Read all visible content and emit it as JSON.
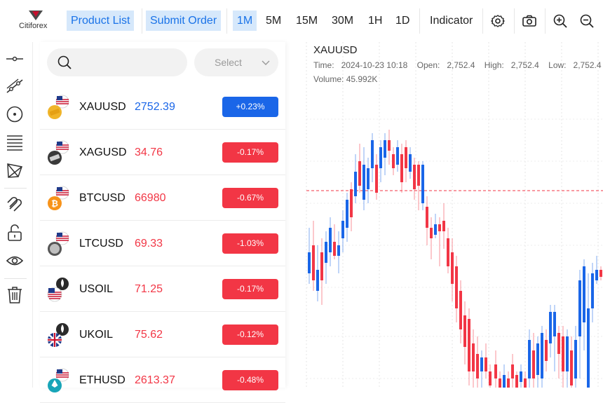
{
  "brand": {
    "name": "Citiforex"
  },
  "toolbar": {
    "product_list": "Product List",
    "submit_order": "Submit Order",
    "timeframes": [
      "1M",
      "5M",
      "15M",
      "30M",
      "1H",
      "1D"
    ],
    "active_timeframe": "1M",
    "indicator": "Indicator",
    "icons": [
      "gear-icon",
      "camera-icon",
      "zoom-in-icon",
      "zoom-out-icon"
    ]
  },
  "left_tools": [
    "horizontal-line-icon",
    "trend-line-icon",
    "circle-dot-icon",
    "fibonacci-icon",
    "pattern-icon",
    "magnet-icon",
    "lock-icon",
    "eye-icon",
    "trash-icon"
  ],
  "search": {
    "placeholder": ""
  },
  "select": {
    "label": "Select"
  },
  "products": [
    {
      "symbol": "XAUUSD",
      "price": "2752.39",
      "change": "+0.23%",
      "direction": "up"
    },
    {
      "symbol": "XAGUSD",
      "price": "34.76",
      "change": "-0.17%",
      "direction": "down"
    },
    {
      "symbol": "BTCUSD",
      "price": "66980",
      "change": "-0.67%",
      "direction": "down"
    },
    {
      "symbol": "LTCUSD",
      "price": "69.33",
      "change": "-1.03%",
      "direction": "down"
    },
    {
      "symbol": "USOIL",
      "price": "71.25",
      "change": "-0.17%",
      "direction": "down"
    },
    {
      "symbol": "UKOIL",
      "price": "75.62",
      "change": "-0.12%",
      "direction": "down"
    },
    {
      "symbol": "ETHUSD",
      "price": "2613.37",
      "change": "-0.48%",
      "direction": "down"
    }
  ],
  "colors": {
    "up": "#1a66e8",
    "down": "#f23645",
    "highlight_bg": "#d6e8fb",
    "accent": "#1a73e8"
  },
  "chart": {
    "symbol": "XAUUSD",
    "time_label": "Time:",
    "time": "2024-10-23 10:18",
    "open_label": "Open:",
    "open": "2,752.4",
    "high_label": "High:",
    "high": "2,752.4",
    "low_label": "Low:",
    "low": "2,752.4",
    "volume_label": "Volume:",
    "volume": "45.992K"
  }
}
